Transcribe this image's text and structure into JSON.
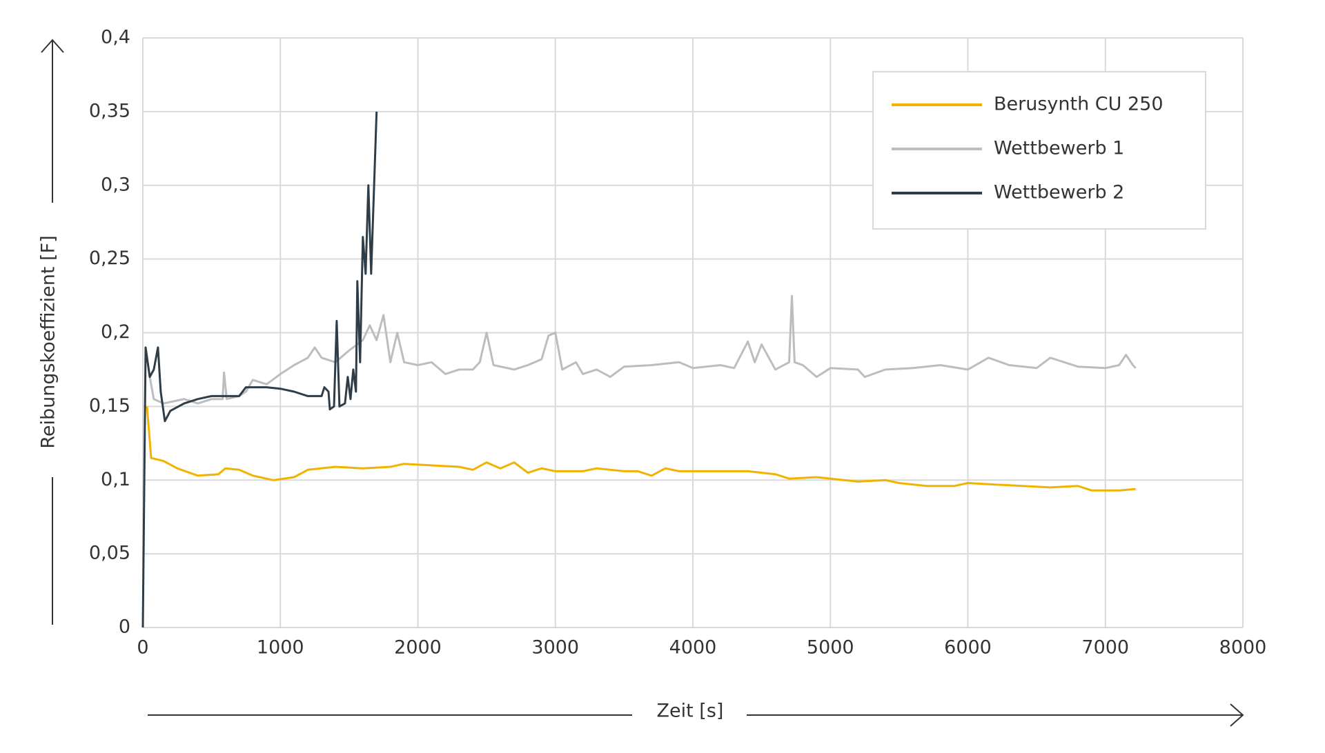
{
  "chart_data": {
    "type": "line",
    "y_label": "Reibungskoeffizient [F]",
    "x_label": "Zeit [s]",
    "xlim": [
      0,
      8000
    ],
    "xticks": [
      0,
      1000,
      2000,
      3000,
      4000,
      5000,
      6000,
      7000,
      8000
    ],
    "ylim": [
      0,
      0.4
    ],
    "yticks": [
      0,
      {
        "value": 0.05,
        "label": "0,05"
      },
      {
        "value": 0.1,
        "label": "0,1"
      },
      {
        "value": 0.15,
        "label": "0,15"
      },
      {
        "value": 0.2,
        "label": "0,2"
      },
      {
        "value": 0.25,
        "label": "0,25"
      },
      {
        "value": 0.3,
        "label": "0,3"
      },
      {
        "value": 0.35,
        "label": "0,35"
      },
      {
        "value": 0.4,
        "label": "0,4"
      }
    ],
    "grid": true,
    "legend": "upper right",
    "series": [
      {
        "name": "Berusynth CU 250",
        "color": "#f0b400",
        "x": [
          30,
          60,
          150,
          250,
          400,
          550,
          600,
          700,
          800,
          950,
          1100,
          1200,
          1400,
          1600,
          1800,
          1900,
          2100,
          2300,
          2400,
          2500,
          2600,
          2700,
          2800,
          2900,
          3000,
          3200,
          3300,
          3500,
          3600,
          3700,
          3800,
          3900,
          4100,
          4400,
          4600,
          4700,
          4900,
          5000,
          5200,
          5400,
          5500,
          5700,
          5900,
          6000,
          6200,
          6400,
          6600,
          6800,
          6900,
          7100,
          7220
        ],
        "values": [
          0.15,
          0.115,
          0.113,
          0.108,
          0.103,
          0.104,
          0.108,
          0.107,
          0.103,
          0.1,
          0.102,
          0.107,
          0.109,
          0.108,
          0.109,
          0.111,
          0.11,
          0.109,
          0.107,
          0.112,
          0.108,
          0.112,
          0.105,
          0.108,
          0.106,
          0.106,
          0.108,
          0.106,
          0.106,
          0.103,
          0.108,
          0.106,
          0.106,
          0.106,
          0.104,
          0.101,
          0.102,
          0.101,
          0.099,
          0.1,
          0.098,
          0.096,
          0.096,
          0.098,
          0.097,
          0.096,
          0.095,
          0.096,
          0.093,
          0.093,
          0.094
        ]
      },
      {
        "name": "Wettbewerb 1",
        "color": "#bdbdc0",
        "x": [
          20,
          50,
          80,
          150,
          300,
          400,
          500,
          580,
          590,
          610,
          700,
          750,
          800,
          900,
          1000,
          1100,
          1200,
          1250,
          1300,
          1400,
          1500,
          1600,
          1650,
          1700,
          1750,
          1800,
          1850,
          1900,
          2000,
          2100,
          2200,
          2300,
          2400,
          2450,
          2500,
          2550,
          2700,
          2800,
          2900,
          2950,
          3000,
          3050,
          3150,
          3200,
          3300,
          3400,
          3500,
          3700,
          3900,
          4000,
          4200,
          4300,
          4400,
          4450,
          4500,
          4600,
          4700,
          4720,
          4740,
          4800,
          4900,
          5000,
          5200,
          5250,
          5400,
          5600,
          5800,
          6000,
          6150,
          6300,
          6500,
          6600,
          6800,
          7000,
          7100,
          7150,
          7200,
          7220
        ],
        "values": [
          0.19,
          0.17,
          0.155,
          0.152,
          0.155,
          0.152,
          0.155,
          0.155,
          0.173,
          0.155,
          0.157,
          0.16,
          0.168,
          0.165,
          0.172,
          0.178,
          0.183,
          0.19,
          0.183,
          0.18,
          0.188,
          0.195,
          0.205,
          0.195,
          0.212,
          0.18,
          0.2,
          0.18,
          0.178,
          0.18,
          0.172,
          0.175,
          0.175,
          0.18,
          0.2,
          0.178,
          0.175,
          0.178,
          0.182,
          0.198,
          0.2,
          0.175,
          0.18,
          0.172,
          0.175,
          0.17,
          0.177,
          0.178,
          0.18,
          0.176,
          0.178,
          0.176,
          0.194,
          0.18,
          0.192,
          0.175,
          0.18,
          0.225,
          0.18,
          0.178,
          0.17,
          0.176,
          0.175,
          0.17,
          0.175,
          0.176,
          0.178,
          0.175,
          0.183,
          0.178,
          0.176,
          0.183,
          0.177,
          0.176,
          0.178,
          0.185,
          0.178,
          0.176
        ]
      },
      {
        "name": "Wettbewerb 2",
        "color": "#2e3d47",
        "x": [
          0,
          20,
          50,
          80,
          110,
          130,
          160,
          200,
          300,
          400,
          500,
          700,
          750,
          900,
          1000,
          1100,
          1200,
          1300,
          1320,
          1350,
          1360,
          1390,
          1410,
          1430,
          1470,
          1490,
          1510,
          1530,
          1550,
          1560,
          1580,
          1600,
          1620,
          1640,
          1660,
          1700
        ],
        "values": [
          0,
          0.19,
          0.17,
          0.175,
          0.19,
          0.16,
          0.14,
          0.147,
          0.152,
          0.155,
          0.157,
          0.157,
          0.163,
          0.163,
          0.162,
          0.16,
          0.157,
          0.157,
          0.163,
          0.16,
          0.148,
          0.15,
          0.208,
          0.15,
          0.152,
          0.17,
          0.155,
          0.175,
          0.16,
          0.235,
          0.18,
          0.265,
          0.24,
          0.3,
          0.24,
          0.35
        ]
      }
    ]
  }
}
